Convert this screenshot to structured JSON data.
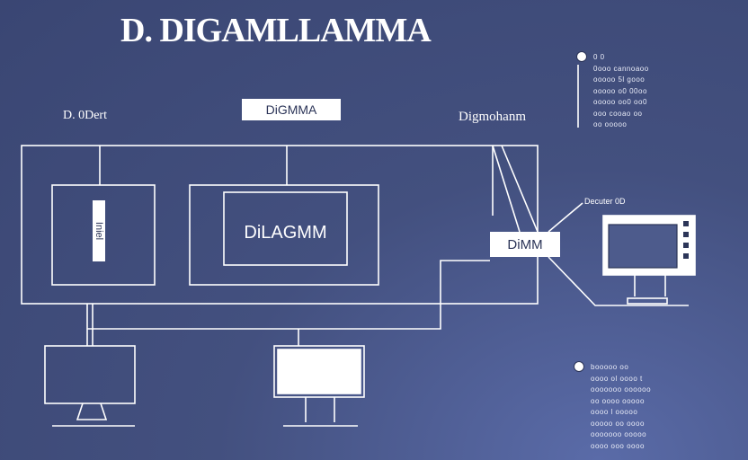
{
  "title": "D. DIGAMLLAMMA",
  "labels": {
    "top_left": "D. 0Dert",
    "top_center": "DiGMMA",
    "top_right": "Digmohanm",
    "center_box": "DiLAGMM",
    "left_vertical": "Iniel",
    "right_box": "DiMM",
    "right_callout": "Decuter 0D"
  },
  "notes": {
    "top_right": [
      "0 0",
      "0ooo cannoaoo",
      "ooooo 5l gooo",
      "ooooo o0 00oo",
      "ooooo oo0 oo0",
      "ooo cooao oo",
      "oo ooooo"
    ],
    "bottom_right": [
      "booooo oo",
      "oooo ol oooo t",
      "ooooooo oooooo",
      "oo oooo ooooo",
      "oooo l ooooo",
      "ooooo oo oooo",
      "ooooooo ooooo",
      "oooo ooo oooo"
    ]
  },
  "colors": {
    "background": "#43507f",
    "line": "#ffffff",
    "text_dark": "#2c3558"
  },
  "icons": [
    "monitor-icon",
    "monitor-icon",
    "monitor-icon",
    "bullet-icon"
  ]
}
